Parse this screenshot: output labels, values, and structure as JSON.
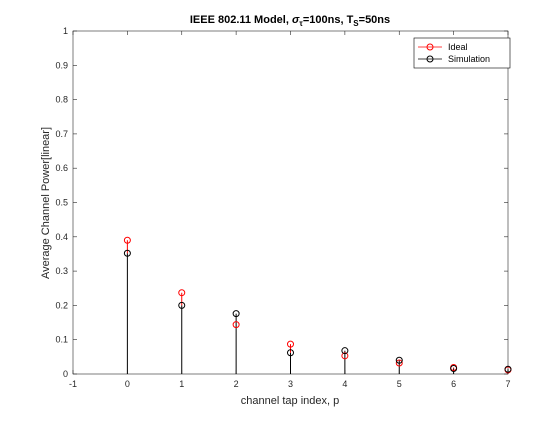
{
  "chart_data": {
    "type": "stem",
    "title_parts": [
      "IEEE 802.11 Model, ",
      "σ",
      "τ",
      "=100ns, T",
      "S",
      "=50ns"
    ],
    "xlabel": "channel tap index, p",
    "ylabel": "Average Channel Power[linear]",
    "xlim": [
      -1,
      7
    ],
    "ylim": [
      0,
      1
    ],
    "xticks": [
      "-1",
      "0",
      "1",
      "2",
      "3",
      "4",
      "5",
      "6",
      "7"
    ],
    "yticks": [
      "0",
      "0.1",
      "0.2",
      "0.3",
      "0.4",
      "0.5",
      "0.6",
      "0.7",
      "0.8",
      "0.9",
      "1"
    ],
    "grid": false,
    "legend_position": "top-right",
    "series": [
      {
        "name": "Ideal",
        "color": "#ff0000",
        "marker": "circle",
        "x": [
          0,
          1,
          2,
          3,
          4,
          5,
          6,
          7
        ],
        "values": [
          0.39,
          0.237,
          0.144,
          0.087,
          0.053,
          0.032,
          0.019,
          0.012
        ]
      },
      {
        "name": "Simulation",
        "color": "#000000",
        "marker": "circle",
        "x": [
          0,
          1,
          2,
          3,
          4,
          5,
          6,
          7
        ],
        "values": [
          0.352,
          0.2,
          0.176,
          0.062,
          0.068,
          0.04,
          0.016,
          0.014
        ]
      }
    ]
  }
}
